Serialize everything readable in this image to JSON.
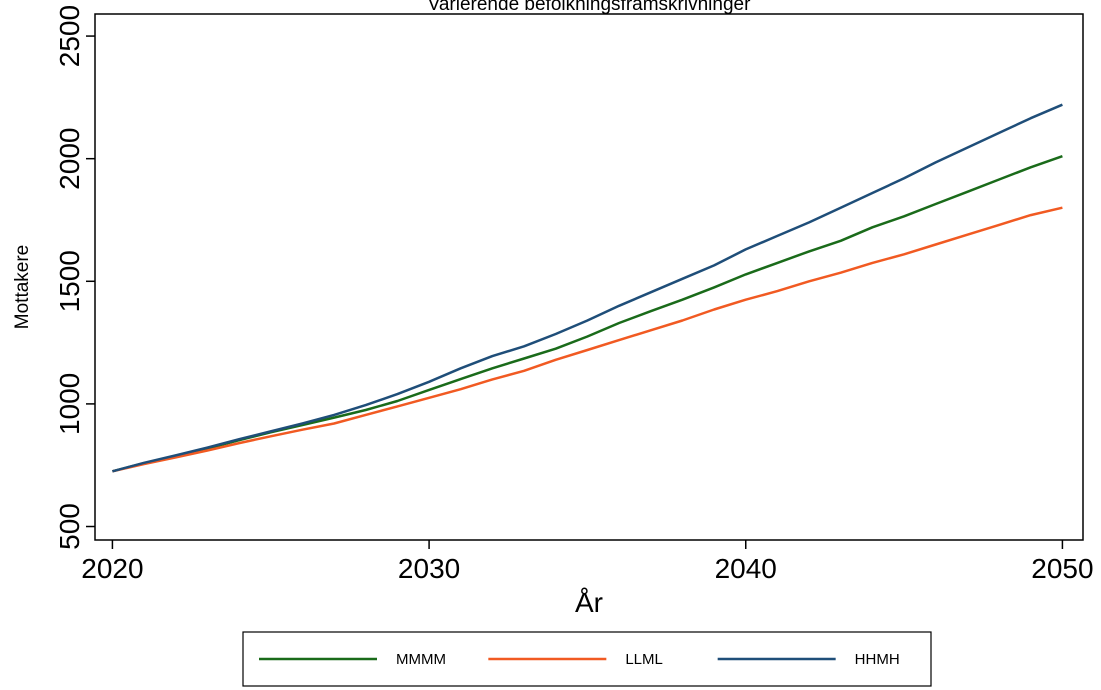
{
  "chart_data": {
    "type": "line",
    "title": "Varierende befolkningsframskrivninger",
    "xlabel": "År",
    "ylabel": "Mottakere",
    "xlim": [
      2020,
      2050
    ],
    "ylim": [
      500,
      2500
    ],
    "xticks": [
      2020,
      2030,
      2040,
      2050
    ],
    "yticks": [
      500,
      1000,
      1500,
      2000,
      2500
    ],
    "grid": false,
    "legend_position": "bottom",
    "x": [
      2020,
      2021,
      2022,
      2023,
      2024,
      2025,
      2026,
      2027,
      2028,
      2029,
      2030,
      2031,
      2032,
      2033,
      2034,
      2035,
      2036,
      2037,
      2038,
      2039,
      2040,
      2041,
      2042,
      2043,
      2044,
      2045,
      2046,
      2047,
      2048,
      2049,
      2050
    ],
    "series": [
      {
        "name": "MMMM",
        "color": "#1a6b1a",
        "values": [
          725,
          758,
          788,
          818,
          852,
          884,
          914,
          944,
          975,
          1012,
          1057,
          1101,
          1145,
          1185,
          1225,
          1275,
          1330,
          1378,
          1425,
          1475,
          1528,
          1575,
          1622,
          1665,
          1720,
          1765,
          1815,
          1865,
          1915,
          1965,
          2010
        ]
      },
      {
        "name": "LLML",
        "color": "#f15a22",
        "values": [
          725,
          755,
          782,
          810,
          840,
          868,
          895,
          920,
          955,
          990,
          1025,
          1060,
          1100,
          1135,
          1180,
          1220,
          1260,
          1300,
          1340,
          1385,
          1425,
          1460,
          1500,
          1535,
          1575,
          1610,
          1650,
          1690,
          1730,
          1770,
          1800
        ]
      },
      {
        "name": "HHMH",
        "color": "#1f4e79",
        "values": [
          725,
          760,
          790,
          822,
          856,
          888,
          920,
          955,
          995,
          1040,
          1090,
          1145,
          1195,
          1235,
          1285,
          1340,
          1400,
          1455,
          1510,
          1565,
          1630,
          1685,
          1740,
          1800,
          1860,
          1920,
          1985,
          2045,
          2105,
          2165,
          2220
        ]
      }
    ]
  }
}
